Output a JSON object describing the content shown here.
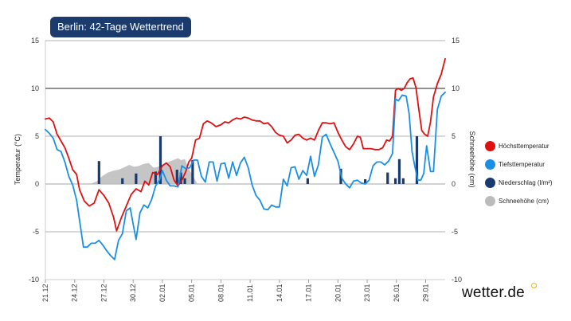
{
  "badge": {
    "title": "Berlin: 42-Tage Wettertrend"
  },
  "brand": {
    "name": "wetter.de"
  },
  "legend": {
    "items": [
      {
        "label": "Höchsttemperatur",
        "color": "#e01010"
      },
      {
        "label": "Tiefsttemperatur",
        "color": "#1a8fe6"
      },
      {
        "label": "Niederschlag (l/m²)",
        "color": "#1b3a6e"
      },
      {
        "label": "Schneehöhe (cm)",
        "color": "#bbbbbb"
      }
    ]
  },
  "chart_data": {
    "type": "line",
    "title": "Berlin: 42-Tage Wettertrend",
    "ylabel": "Temperatur (°C)",
    "ylabel_right": "Schneehöhe (cm)",
    "ylim": [
      -10,
      15
    ],
    "y2lim": [
      -10,
      15
    ],
    "yticks": [
      15,
      10,
      5,
      0,
      -5,
      -10
    ],
    "xlim": [
      0,
      41
    ],
    "x_ticks": [
      {
        "x": 0,
        "label": "21.12"
      },
      {
        "x": 3,
        "label": "24.12"
      },
      {
        "x": 6,
        "label": "27.12"
      },
      {
        "x": 9,
        "label": "30.12"
      },
      {
        "x": 12,
        "label": "02.01"
      },
      {
        "x": 15,
        "label": "05.01"
      },
      {
        "x": 18,
        "label": "08.01"
      },
      {
        "x": 21,
        "label": "11.01"
      },
      {
        "x": 24,
        "label": "14.01"
      },
      {
        "x": 27,
        "label": "17.01"
      },
      {
        "x": 30,
        "label": "20.01"
      },
      {
        "x": 33,
        "label": "23.01"
      },
      {
        "x": 36,
        "label": "26.01"
      },
      {
        "x": 39,
        "label": "29.01"
      }
    ],
    "series": [
      {
        "name": "Höchsttemperatur",
        "color": "#e01010",
        "points": [
          [
            0,
            6.8
          ],
          [
            0.4,
            6.9
          ],
          [
            0.8,
            6.5
          ],
          [
            1.2,
            5.2
          ],
          [
            1.6,
            4.5
          ],
          [
            2,
            3.8
          ],
          [
            2.4,
            2.7
          ],
          [
            2.8,
            1.5
          ],
          [
            3.2,
            1.0
          ],
          [
            3.5,
            -0.6
          ],
          [
            4,
            -1.8
          ],
          [
            4.5,
            -2.3
          ],
          [
            5,
            -2.0
          ],
          [
            5.5,
            -0.6
          ],
          [
            6,
            -1.2
          ],
          [
            6.5,
            -2.0
          ],
          [
            7,
            -3.5
          ],
          [
            7.3,
            -4.9
          ],
          [
            7.8,
            -3.5
          ],
          [
            8.3,
            -2.3
          ],
          [
            8.8,
            -1.1
          ],
          [
            9.3,
            -0.5
          ],
          [
            9.8,
            -0.8
          ],
          [
            10.2,
            0.3
          ],
          [
            10.6,
            -0.1
          ],
          [
            11.0,
            1.2
          ],
          [
            11.5,
            1.0
          ],
          [
            12,
            1.9
          ],
          [
            12.4,
            2.2
          ],
          [
            12.8,
            1.8
          ],
          [
            13.2,
            0.4
          ],
          [
            13.6,
            -0.2
          ],
          [
            14,
            0.4
          ],
          [
            14.4,
            1.3
          ],
          [
            14.7,
            2.3
          ],
          [
            15,
            2.7
          ],
          [
            15.4,
            4.6
          ],
          [
            15.8,
            4.8
          ],
          [
            16.2,
            6.3
          ],
          [
            16.6,
            6.6
          ],
          [
            17,
            6.4
          ],
          [
            17.5,
            6.0
          ],
          [
            18,
            6.2
          ],
          [
            18.4,
            6.5
          ],
          [
            18.8,
            6.4
          ],
          [
            19.2,
            6.7
          ],
          [
            19.6,
            6.9
          ],
          [
            20,
            6.8
          ],
          [
            20.4,
            7.0
          ],
          [
            20.8,
            6.9
          ],
          [
            21.2,
            6.7
          ],
          [
            21.6,
            6.6
          ],
          [
            22,
            6.6
          ],
          [
            22.4,
            6.3
          ],
          [
            22.8,
            6.4
          ],
          [
            23.2,
            6.0
          ],
          [
            23.6,
            5.4
          ],
          [
            24,
            5.1
          ],
          [
            24.4,
            5.0
          ],
          [
            24.8,
            4.3
          ],
          [
            25.2,
            4.6
          ],
          [
            25.6,
            5.1
          ],
          [
            26,
            5.2
          ],
          [
            26.4,
            4.8
          ],
          [
            26.8,
            4.6
          ],
          [
            27.2,
            4.8
          ],
          [
            27.6,
            4.6
          ],
          [
            28,
            5.6
          ],
          [
            28.4,
            6.4
          ],
          [
            28.8,
            6.4
          ],
          [
            29.2,
            6.3
          ],
          [
            29.6,
            6.4
          ],
          [
            30,
            5.4
          ],
          [
            30.4,
            4.6
          ],
          [
            30.8,
            3.9
          ],
          [
            31.2,
            3.6
          ],
          [
            31.6,
            4.2
          ],
          [
            32,
            5.0
          ],
          [
            32.3,
            4.9
          ],
          [
            32.6,
            3.7
          ],
          [
            33,
            3.7
          ],
          [
            33.4,
            3.7
          ],
          [
            33.8,
            3.6
          ],
          [
            34.2,
            3.6
          ],
          [
            34.6,
            3.8
          ],
          [
            35,
            4.6
          ],
          [
            35.3,
            4.5
          ],
          [
            35.6,
            5.0
          ],
          [
            35.9,
            9.8
          ],
          [
            36.2,
            10.0
          ],
          [
            36.5,
            9.8
          ],
          [
            36.8,
            10.0
          ],
          [
            37.1,
            10.6
          ],
          [
            37.4,
            11.0
          ],
          [
            37.7,
            11.1
          ],
          [
            38,
            10.1
          ],
          [
            38.3,
            7.8
          ],
          [
            38.6,
            5.6
          ],
          [
            38.9,
            5.2
          ],
          [
            39.2,
            5.0
          ],
          [
            39.5,
            6.5
          ],
          [
            39.8,
            9.1
          ],
          [
            40.2,
            10.5
          ],
          [
            40.6,
            11.5
          ],
          [
            41,
            13.1
          ]
        ]
      },
      {
        "name": "Tiefsttemperatur",
        "color": "#1a8fe6",
        "points": [
          [
            0,
            5.7
          ],
          [
            0.4,
            5.3
          ],
          [
            0.8,
            4.8
          ],
          [
            1.2,
            3.6
          ],
          [
            1.6,
            3.4
          ],
          [
            2,
            2.3
          ],
          [
            2.4,
            0.8
          ],
          [
            2.8,
            -0.1
          ],
          [
            3.2,
            -1.7
          ],
          [
            3.5,
            -3.8
          ],
          [
            3.9,
            -6.6
          ],
          [
            4.3,
            -6.6
          ],
          [
            4.7,
            -6.2
          ],
          [
            5.1,
            -6.2
          ],
          [
            5.5,
            -5.9
          ],
          [
            5.9,
            -6.4
          ],
          [
            6.3,
            -7.0
          ],
          [
            6.7,
            -7.5
          ],
          [
            7.1,
            -7.9
          ],
          [
            7.5,
            -5.9
          ],
          [
            7.9,
            -5.2
          ],
          [
            8.3,
            -2.8
          ],
          [
            8.7,
            -2.5
          ],
          [
            9.0,
            -4.2
          ],
          [
            9.3,
            -5.8
          ],
          [
            9.7,
            -3.0
          ],
          [
            10.1,
            -2.2
          ],
          [
            10.5,
            -2.5
          ],
          [
            10.9,
            -1.6
          ],
          [
            11.3,
            -0.2
          ],
          [
            11.7,
            0.4
          ],
          [
            12,
            1.4
          ],
          [
            12.4,
            0.4
          ],
          [
            12.8,
            -0.2
          ],
          [
            13.2,
            -0.2
          ],
          [
            13.6,
            -0.3
          ],
          [
            14.0,
            1.9
          ],
          [
            14.4,
            1.6
          ],
          [
            14.8,
            1.7
          ],
          [
            15.2,
            2.5
          ],
          [
            15.6,
            2.5
          ],
          [
            16.0,
            0.8
          ],
          [
            16.4,
            0.2
          ],
          [
            16.8,
            2.3
          ],
          [
            17.2,
            2.3
          ],
          [
            17.6,
            0.3
          ],
          [
            18,
            2.1
          ],
          [
            18.4,
            2.2
          ],
          [
            18.8,
            0.6
          ],
          [
            19.2,
            2.3
          ],
          [
            19.6,
            0.9
          ],
          [
            20.0,
            2.2
          ],
          [
            20.4,
            2.8
          ],
          [
            20.8,
            1.7
          ],
          [
            21.2,
            -0.1
          ],
          [
            21.6,
            -1.2
          ],
          [
            22,
            -1.7
          ],
          [
            22.4,
            -2.6
          ],
          [
            22.8,
            -2.7
          ],
          [
            23.2,
            -2.2
          ],
          [
            23.6,
            -2.4
          ],
          [
            24,
            -2.4
          ],
          [
            24.4,
            0.5
          ],
          [
            24.8,
            -0.2
          ],
          [
            25.2,
            1.7
          ],
          [
            25.6,
            1.8
          ],
          [
            26,
            0.5
          ],
          [
            26.4,
            1.4
          ],
          [
            26.8,
            0.9
          ],
          [
            27.2,
            2.9
          ],
          [
            27.6,
            0.8
          ],
          [
            28,
            2.0
          ],
          [
            28.4,
            4.9
          ],
          [
            28.8,
            5.2
          ],
          [
            29.2,
            4.2
          ],
          [
            29.6,
            3.3
          ],
          [
            30,
            2.4
          ],
          [
            30.4,
            0.6
          ],
          [
            30.8,
            0.0
          ],
          [
            31.2,
            -0.4
          ],
          [
            31.6,
            0.3
          ],
          [
            32.0,
            0.4
          ],
          [
            32.4,
            0.1
          ],
          [
            32.8,
            0.0
          ],
          [
            33.2,
            0.4
          ],
          [
            33.6,
            1.9
          ],
          [
            34.0,
            2.3
          ],
          [
            34.4,
            2.3
          ],
          [
            34.8,
            2.0
          ],
          [
            35.2,
            2.4
          ],
          [
            35.6,
            3.2
          ],
          [
            35.9,
            8.9
          ],
          [
            36.2,
            8.7
          ],
          [
            36.6,
            9.3
          ],
          [
            37.0,
            9.2
          ],
          [
            37.3,
            7.4
          ],
          [
            37.6,
            3.4
          ],
          [
            37.9,
            1.8
          ],
          [
            38.2,
            0.4
          ],
          [
            38.5,
            0.4
          ],
          [
            38.8,
            1.1
          ],
          [
            39.1,
            4.0
          ],
          [
            39.5,
            1.3
          ],
          [
            39.8,
            1.3
          ],
          [
            40.2,
            7.8
          ],
          [
            40.6,
            9.2
          ],
          [
            41,
            9.6
          ]
        ]
      },
      {
        "name": "Schneehöhe (cm)",
        "color": "#bbbbbb",
        "points": [
          [
            4.6,
            0
          ],
          [
            5.3,
            0.3
          ],
          [
            5.8,
            0.8
          ],
          [
            6.4,
            1.2
          ],
          [
            7,
            1.4
          ],
          [
            7.5,
            1.5
          ],
          [
            8,
            1.7
          ],
          [
            8.6,
            2.0
          ],
          [
            9.1,
            1.8
          ],
          [
            9.6,
            1.9
          ],
          [
            10.1,
            2.1
          ],
          [
            10.6,
            2.2
          ],
          [
            11.1,
            1.7
          ],
          [
            11.6,
            1.8
          ],
          [
            12.1,
            2.1
          ],
          [
            12.6,
            2.3
          ],
          [
            13.1,
            2.5
          ],
          [
            13.6,
            2.7
          ],
          [
            13.9,
            2.5
          ],
          [
            14.3,
            2.6
          ],
          [
            14.7,
            1.6
          ],
          [
            15.1,
            0.9
          ],
          [
            15.6,
            0
          ]
        ]
      }
    ],
    "bars": {
      "name": "Niederschlag (l/m²)",
      "color": "#1b3a6e",
      "points": [
        [
          5.5,
          2.4
        ],
        [
          7.9,
          0.6
        ],
        [
          9.3,
          1.1
        ],
        [
          11.3,
          1.3
        ],
        [
          11.8,
          5.0
        ],
        [
          13.5,
          1.5
        ],
        [
          13.9,
          1.2
        ],
        [
          14.3,
          0.6
        ],
        [
          15.1,
          2.5
        ],
        [
          26.9,
          0.6
        ],
        [
          30.3,
          1.6
        ],
        [
          32.8,
          0.5
        ],
        [
          35.1,
          1.2
        ],
        [
          35.9,
          0.6
        ],
        [
          36.3,
          2.6
        ],
        [
          36.7,
          0.6
        ],
        [
          38.1,
          5.0
        ]
      ]
    }
  }
}
